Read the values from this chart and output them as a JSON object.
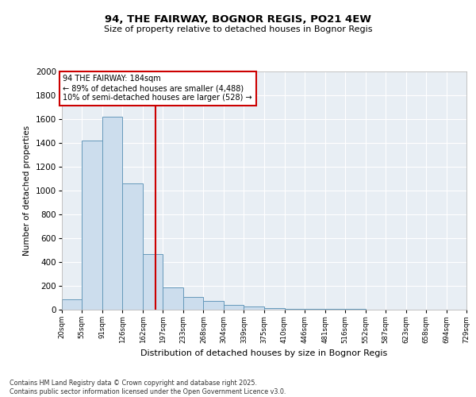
{
  "title": "94, THE FAIRWAY, BOGNOR REGIS, PO21 4EW",
  "subtitle": "Size of property relative to detached houses in Bognor Regis",
  "xlabel": "Distribution of detached houses by size in Bognor Regis",
  "ylabel": "Number of detached properties",
  "footer_line1": "Contains HM Land Registry data © Crown copyright and database right 2025.",
  "footer_line2": "Contains public sector information licensed under the Open Government Licence v3.0.",
  "property_size": 184,
  "property_label": "94 THE FAIRWAY: 184sqm",
  "annotation_line1": "← 89% of detached houses are smaller (4,488)",
  "annotation_line2": "10% of semi-detached houses are larger (528) →",
  "bar_color": "#ccdded",
  "bar_edge_color": "#6699bb",
  "vline_color": "#cc0000",
  "annotation_box_color": "#cc0000",
  "plot_bg_color": "#e8eef4",
  "ylim": [
    0,
    2000
  ],
  "yticks": [
    0,
    200,
    400,
    600,
    800,
    1000,
    1200,
    1400,
    1600,
    1800,
    2000
  ],
  "bin_edges": [
    20,
    55,
    91,
    126,
    162,
    197,
    233,
    268,
    304,
    339,
    375,
    410,
    446,
    481,
    516,
    552,
    587,
    623,
    658,
    694,
    729
  ],
  "bin_labels": [
    "20sqm",
    "55sqm",
    "91sqm",
    "126sqm",
    "162sqm",
    "197sqm",
    "233sqm",
    "268sqm",
    "304sqm",
    "339sqm",
    "375sqm",
    "410sqm",
    "446sqm",
    "481sqm",
    "516sqm",
    "552sqm",
    "587sqm",
    "623sqm",
    "658sqm",
    "694sqm",
    "729sqm"
  ],
  "counts": [
    90,
    1420,
    1620,
    1060,
    470,
    190,
    110,
    75,
    40,
    25,
    15,
    10,
    8,
    5,
    4,
    3,
    2,
    2,
    1,
    1
  ]
}
